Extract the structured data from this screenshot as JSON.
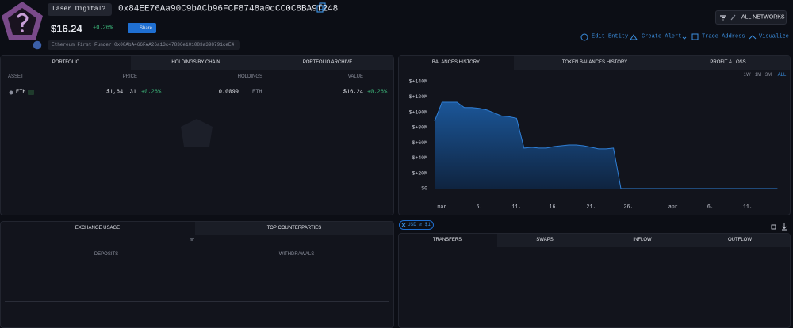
{
  "header": {
    "entity": "Laser Digital?",
    "address": "0x84EE76Aa90C9bACb96FCF8748a0cCC0C8BA9f248",
    "balance": "$16.24",
    "change": "+0.26%",
    "share": "Share",
    "funder_label": "Ethereum First Funder:",
    "funder_address": "0x00AbA466FAA26a13c47836e101083a398791ceE4",
    "networks": "ALL NETWORKS",
    "actions": [
      "Edit Entity",
      "Create Alert",
      "Trace Address",
      "Visualize"
    ]
  },
  "portfolio": {
    "tabs": [
      "PORTFOLIO",
      "HOLDINGS BY CHAIN",
      "PORTFOLIO ARCHIVE"
    ],
    "columns": [
      "ASSET",
      "PRICE",
      "HOLDINGS",
      "VALUE"
    ],
    "rows": [
      [
        "ETH",
        "$1,641.31",
        "+0.26%",
        "0.0099",
        "ETH",
        "$16.24",
        "+0.26%"
      ]
    ]
  },
  "history": {
    "tabs": [
      "BALANCES HISTORY",
      "TOKEN BALANCES HISTORY",
      "PROFIT & LOSS"
    ],
    "ranges": [
      "1W",
      "1M",
      "3M",
      "ALL"
    ]
  },
  "chart_data": {
    "type": "area",
    "color": "#2f7fd6",
    "categories": [
      null,
      "mar",
      null,
      null,
      null,
      null,
      "6.",
      null,
      null,
      null,
      null,
      "11.",
      null,
      null,
      null,
      null,
      "16.",
      null,
      null,
      null,
      null,
      "21.",
      null,
      null,
      null,
      null,
      "26.",
      null,
      null,
      null,
      null,
      null,
      "apr",
      null,
      null,
      null,
      null,
      "6.",
      null,
      null,
      null,
      null,
      "11.",
      null,
      null,
      null,
      null
    ],
    "values": [
      88000000,
      113000000,
      113000000,
      113000000,
      106000000,
      106000000,
      105000000,
      103000000,
      99000000,
      95000000,
      94000000,
      92000000,
      53000000,
      54000000,
      53000000,
      53000000,
      55000000,
      56000000,
      57000000,
      57000000,
      56000000,
      54000000,
      52000000,
      52000000,
      53000000,
      16,
      16,
      16,
      16,
      16,
      16,
      16,
      16,
      16,
      16,
      16,
      16,
      16,
      16,
      16,
      16,
      16,
      16,
      16,
      16,
      16,
      16
    ],
    "ylim": [
      0,
      140000000
    ],
    "yticks": [
      {
        "value": 0,
        "label": "$0"
      },
      {
        "value": 20000000,
        "label": "$+20M"
      },
      {
        "value": 40000000,
        "label": "$+40M"
      },
      {
        "value": 60000000,
        "label": "$+60M"
      },
      {
        "value": 80000000,
        "label": "$+80M"
      },
      {
        "value": 100000000,
        "label": "$+100M"
      },
      {
        "value": 120000000,
        "label": "$+120M"
      },
      {
        "value": 140000000,
        "label": "$+140M"
      }
    ]
  },
  "exchange": {
    "tabs": [
      "EXCHANGE USAGE",
      "TOP COUNTERPARTIES"
    ],
    "columns": [
      "DEPOSITS",
      "WITHDRAWALS"
    ]
  },
  "transfers": {
    "filter": "USD ≥ $1",
    "tabs": [
      "TRANSFERS",
      "SWAPS",
      "INFLOW",
      "OUTFLOW"
    ]
  }
}
